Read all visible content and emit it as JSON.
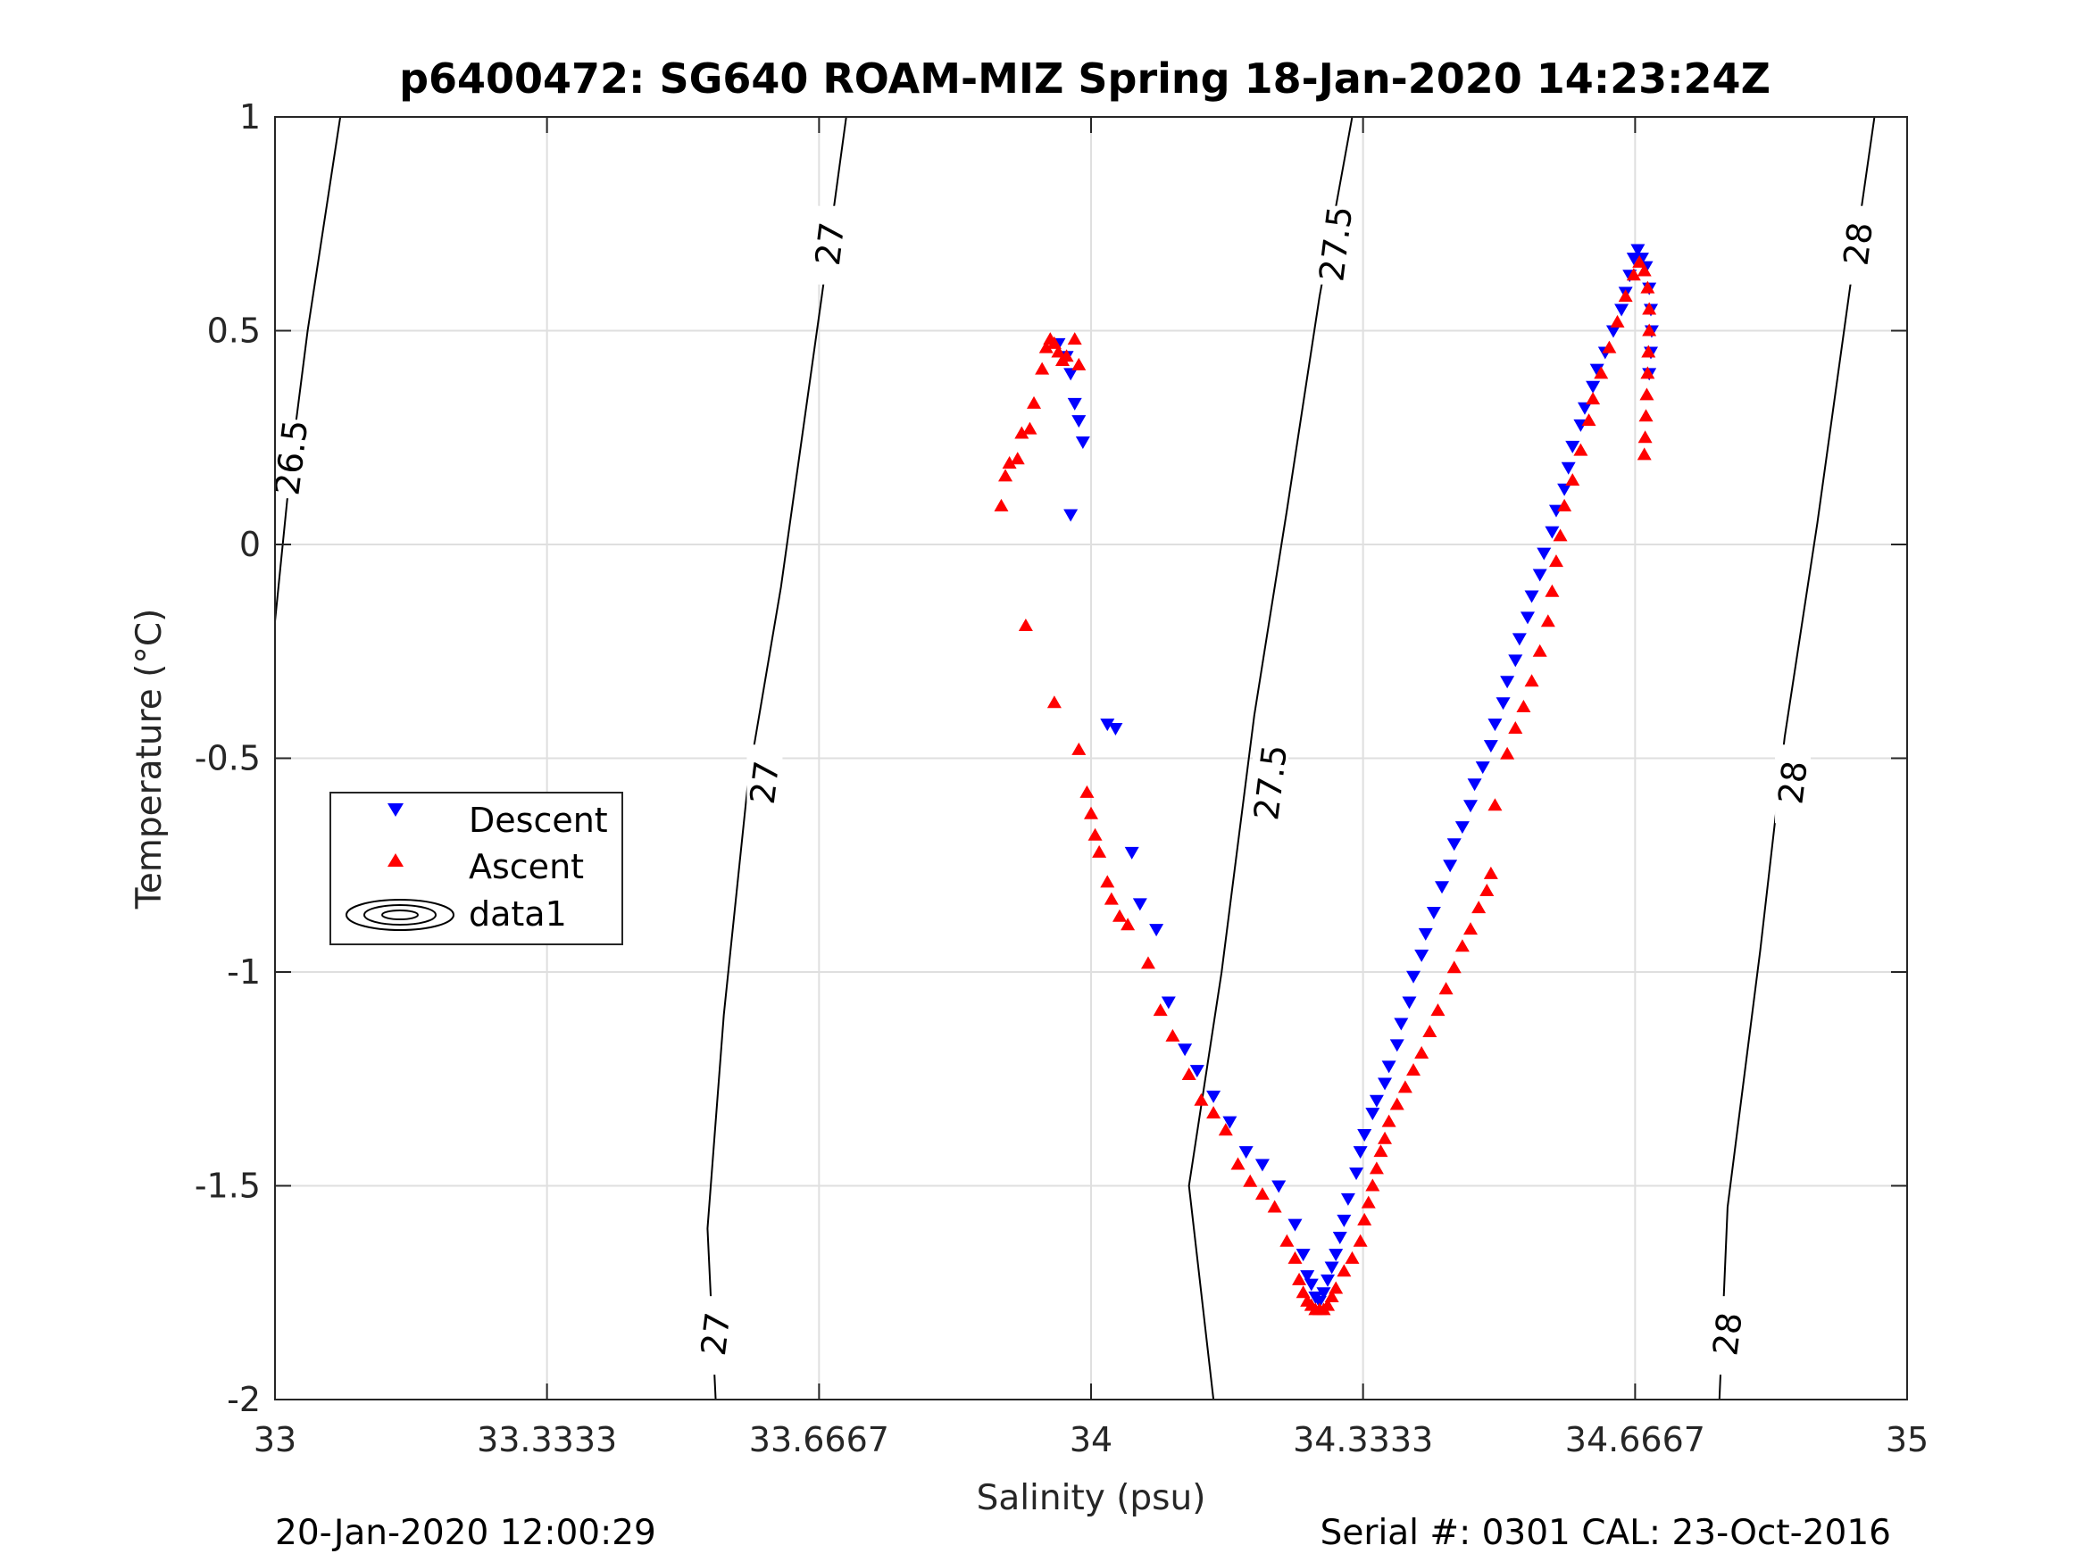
{
  "footer": {
    "left": "20-Jan-2020 12:00:29",
    "right": "Serial #: 0301  CAL: 23-Oct-2016"
  },
  "chart_data": {
    "type": "scatter",
    "title": "p6400472: SG640 ROAM-MIZ Spring 18-Jan-2020 14:23:24Z",
    "xlabel": "Salinity (psu)",
    "ylabel": "Temperature (°C)",
    "xlim": [
      33,
      35
    ],
    "ylim": [
      -2,
      1
    ],
    "xticks": [
      33,
      33.3333,
      33.6667,
      34,
      34.3333,
      34.6667,
      35
    ],
    "xtick_labels": [
      "33",
      "33.3333",
      "33.6667",
      "34",
      "34.3333",
      "34.6667",
      "35"
    ],
    "yticks": [
      -2,
      -1.5,
      -1,
      -0.5,
      0,
      0.5,
      1
    ],
    "ytick_labels": [
      "-2",
      "-1.5",
      "-1",
      "-0.5",
      "0",
      "0.5",
      "1"
    ],
    "grid": true,
    "legend": {
      "position": "left-middle",
      "entries": [
        "Descent",
        "Ascent",
        "data1"
      ]
    },
    "colors": {
      "descent": "#0000ff",
      "ascent": "#ff0000",
      "contour": "#000000"
    },
    "series": [
      {
        "name": "Descent",
        "marker": "down-triangle",
        "color": "#0000ff",
        "points": [
          [
            33.96,
            0.47
          ],
          [
            33.97,
            0.44
          ],
          [
            33.975,
            0.4
          ],
          [
            33.98,
            0.33
          ],
          [
            33.985,
            0.29
          ],
          [
            33.99,
            0.24
          ],
          [
            33.975,
            0.07
          ],
          [
            34.02,
            -0.42
          ],
          [
            34.03,
            -0.43
          ],
          [
            34.05,
            -0.72
          ],
          [
            34.06,
            -0.84
          ],
          [
            34.08,
            -0.9
          ],
          [
            34.095,
            -1.07
          ],
          [
            34.115,
            -1.18
          ],
          [
            34.13,
            -1.23
          ],
          [
            34.15,
            -1.29
          ],
          [
            34.17,
            -1.35
          ],
          [
            34.19,
            -1.42
          ],
          [
            34.21,
            -1.45
          ],
          [
            34.23,
            -1.5
          ],
          [
            34.25,
            -1.59
          ],
          [
            34.26,
            -1.66
          ],
          [
            34.265,
            -1.71
          ],
          [
            34.27,
            -1.73
          ],
          [
            34.275,
            -1.76
          ],
          [
            34.28,
            -1.77
          ],
          [
            34.285,
            -1.75
          ],
          [
            34.29,
            -1.72
          ],
          [
            34.295,
            -1.69
          ],
          [
            34.3,
            -1.66
          ],
          [
            34.305,
            -1.62
          ],
          [
            34.31,
            -1.58
          ],
          [
            34.315,
            -1.53
          ],
          [
            34.325,
            -1.47
          ],
          [
            34.33,
            -1.42
          ],
          [
            34.335,
            -1.38
          ],
          [
            34.345,
            -1.33
          ],
          [
            34.35,
            -1.3
          ],
          [
            34.36,
            -1.26
          ],
          [
            34.365,
            -1.22
          ],
          [
            34.375,
            -1.17
          ],
          [
            34.38,
            -1.12
          ],
          [
            34.39,
            -1.07
          ],
          [
            34.395,
            -1.01
          ],
          [
            34.405,
            -0.96
          ],
          [
            34.41,
            -0.91
          ],
          [
            34.42,
            -0.86
          ],
          [
            34.43,
            -0.8
          ],
          [
            34.44,
            -0.75
          ],
          [
            34.445,
            -0.7
          ],
          [
            34.455,
            -0.66
          ],
          [
            34.465,
            -0.61
          ],
          [
            34.47,
            -0.56
          ],
          [
            34.48,
            -0.52
          ],
          [
            34.49,
            -0.47
          ],
          [
            34.495,
            -0.42
          ],
          [
            34.505,
            -0.37
          ],
          [
            34.51,
            -0.32
          ],
          [
            34.52,
            -0.27
          ],
          [
            34.525,
            -0.22
          ],
          [
            34.535,
            -0.17
          ],
          [
            34.54,
            -0.12
          ],
          [
            34.55,
            -0.07
          ],
          [
            34.555,
            -0.02
          ],
          [
            34.565,
            0.03
          ],
          [
            34.57,
            0.08
          ],
          [
            34.58,
            0.13
          ],
          [
            34.585,
            0.18
          ],
          [
            34.59,
            0.23
          ],
          [
            34.6,
            0.28
          ],
          [
            34.605,
            0.32
          ],
          [
            34.615,
            0.37
          ],
          [
            34.62,
            0.41
          ],
          [
            34.63,
            0.45
          ],
          [
            34.64,
            0.5
          ],
          [
            34.65,
            0.55
          ],
          [
            34.655,
            0.59
          ],
          [
            34.66,
            0.63
          ],
          [
            34.665,
            0.67
          ],
          [
            34.67,
            0.69
          ],
          [
            34.675,
            0.67
          ],
          [
            34.68,
            0.65
          ],
          [
            34.684,
            0.6
          ],
          [
            34.686,
            0.55
          ],
          [
            34.687,
            0.5
          ],
          [
            34.686,
            0.45
          ],
          [
            34.684,
            0.4
          ]
        ]
      },
      {
        "name": "Ascent",
        "marker": "up-triangle",
        "color": "#ff0000",
        "points": [
          [
            33.89,
            0.09
          ],
          [
            33.895,
            0.16
          ],
          [
            33.9,
            0.19
          ],
          [
            33.91,
            0.2
          ],
          [
            33.915,
            0.26
          ],
          [
            33.925,
            0.27
          ],
          [
            33.93,
            0.33
          ],
          [
            33.94,
            0.41
          ],
          [
            33.945,
            0.46
          ],
          [
            33.95,
            0.48
          ],
          [
            33.955,
            0.47
          ],
          [
            33.96,
            0.45
          ],
          [
            33.965,
            0.43
          ],
          [
            33.97,
            0.44
          ],
          [
            33.98,
            0.48
          ],
          [
            33.985,
            0.42
          ],
          [
            33.92,
            -0.19
          ],
          [
            33.955,
            -0.37
          ],
          [
            33.985,
            -0.48
          ],
          [
            33.995,
            -0.58
          ],
          [
            34.0,
            -0.63
          ],
          [
            34.005,
            -0.68
          ],
          [
            34.01,
            -0.72
          ],
          [
            34.02,
            -0.79
          ],
          [
            34.025,
            -0.83
          ],
          [
            34.035,
            -0.87
          ],
          [
            34.045,
            -0.89
          ],
          [
            34.07,
            -0.98
          ],
          [
            34.085,
            -1.09
          ],
          [
            34.1,
            -1.15
          ],
          [
            34.12,
            -1.24
          ],
          [
            34.135,
            -1.3
          ],
          [
            34.15,
            -1.33
          ],
          [
            34.165,
            -1.37
          ],
          [
            34.18,
            -1.45
          ],
          [
            34.195,
            -1.49
          ],
          [
            34.21,
            -1.52
          ],
          [
            34.225,
            -1.55
          ],
          [
            34.24,
            -1.63
          ],
          [
            34.25,
            -1.67
          ],
          [
            34.255,
            -1.72
          ],
          [
            34.26,
            -1.75
          ],
          [
            34.265,
            -1.77
          ],
          [
            34.27,
            -1.78
          ],
          [
            34.275,
            -1.79
          ],
          [
            34.28,
            -1.79
          ],
          [
            34.285,
            -1.79
          ],
          [
            34.29,
            -1.78
          ],
          [
            34.295,
            -1.76
          ],
          [
            34.3,
            -1.74
          ],
          [
            34.31,
            -1.7
          ],
          [
            34.32,
            -1.67
          ],
          [
            34.33,
            -1.63
          ],
          [
            34.335,
            -1.58
          ],
          [
            34.34,
            -1.54
          ],
          [
            34.345,
            -1.5
          ],
          [
            34.35,
            -1.46
          ],
          [
            34.355,
            -1.42
          ],
          [
            34.36,
            -1.39
          ],
          [
            34.365,
            -1.35
          ],
          [
            34.375,
            -1.31
          ],
          [
            34.385,
            -1.27
          ],
          [
            34.395,
            -1.23
          ],
          [
            34.405,
            -1.19
          ],
          [
            34.415,
            -1.14
          ],
          [
            34.425,
            -1.09
          ],
          [
            34.435,
            -1.04
          ],
          [
            34.445,
            -0.99
          ],
          [
            34.455,
            -0.94
          ],
          [
            34.465,
            -0.9
          ],
          [
            34.475,
            -0.85
          ],
          [
            34.485,
            -0.81
          ],
          [
            34.49,
            -0.77
          ],
          [
            34.495,
            -0.61
          ],
          [
            34.51,
            -0.49
          ],
          [
            34.52,
            -0.43
          ],
          [
            34.53,
            -0.38
          ],
          [
            34.54,
            -0.32
          ],
          [
            34.55,
            -0.25
          ],
          [
            34.56,
            -0.18
          ],
          [
            34.565,
            -0.11
          ],
          [
            34.57,
            -0.04
          ],
          [
            34.575,
            0.02
          ],
          [
            34.58,
            0.09
          ],
          [
            34.59,
            0.15
          ],
          [
            34.6,
            0.22
          ],
          [
            34.61,
            0.29
          ],
          [
            34.615,
            0.34
          ],
          [
            34.625,
            0.4
          ],
          [
            34.635,
            0.46
          ],
          [
            34.645,
            0.52
          ],
          [
            34.655,
            0.58
          ],
          [
            34.665,
            0.63
          ],
          [
            34.672,
            0.66
          ],
          [
            34.678,
            0.64
          ],
          [
            34.682,
            0.6
          ],
          [
            34.684,
            0.55
          ],
          [
            34.684,
            0.5
          ],
          [
            34.683,
            0.45
          ],
          [
            34.682,
            0.4
          ],
          [
            34.681,
            0.35
          ],
          [
            34.68,
            0.3
          ],
          [
            34.679,
            0.25
          ],
          [
            34.678,
            0.21
          ]
        ]
      }
    ],
    "contours": [
      {
        "label": "26.5",
        "points": [
          [
            33.08,
            1.0
          ],
          [
            33.04,
            0.5
          ],
          [
            33.02,
            0.2
          ],
          [
            33.0,
            -0.18
          ]
        ],
        "label_at": [
          33.02,
          0.2
        ]
      },
      {
        "label": "27",
        "points": [
          [
            33.7,
            1.0
          ],
          [
            33.67,
            0.58
          ],
          [
            33.62,
            -0.1
          ],
          [
            33.58,
            -0.55
          ],
          [
            33.55,
            -1.1
          ],
          [
            33.53,
            -1.6
          ],
          [
            33.54,
            -2.0
          ]
        ],
        "label_at": [
          [
            33.68,
            0.7
          ],
          [
            33.6,
            -0.56
          ],
          [
            33.54,
            -1.85
          ]
        ]
      },
      {
        "label": "27.5",
        "points": [
          [
            34.32,
            1.0
          ],
          [
            34.28,
            0.58
          ],
          [
            34.24,
            0.08
          ],
          [
            34.2,
            -0.4
          ],
          [
            34.16,
            -1.0
          ],
          [
            34.12,
            -1.5
          ],
          [
            34.15,
            -2.0
          ]
        ],
        "label_at": [
          [
            34.3,
            0.7
          ],
          [
            34.22,
            -0.56
          ]
        ]
      },
      {
        "label": "28",
        "points": [
          [
            34.96,
            1.0
          ],
          [
            34.93,
            0.6
          ],
          [
            34.89,
            0.05
          ],
          [
            34.85,
            -0.45
          ],
          [
            34.82,
            -0.95
          ],
          [
            34.78,
            -1.55
          ],
          [
            34.77,
            -2.0
          ]
        ],
        "label_at": [
          [
            34.94,
            0.7
          ],
          [
            34.86,
            -0.56
          ],
          [
            34.78,
            -1.85
          ]
        ]
      }
    ]
  }
}
